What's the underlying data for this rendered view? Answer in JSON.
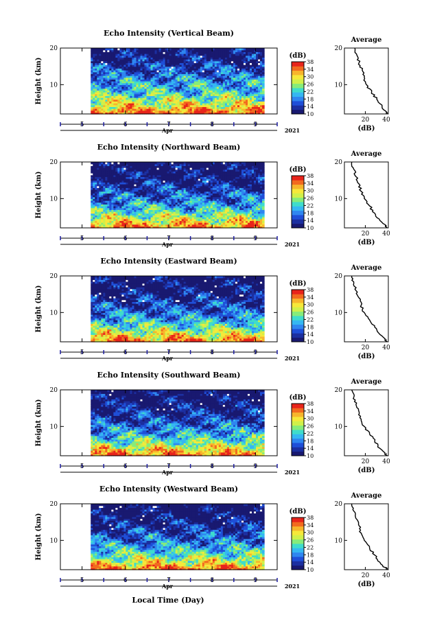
{
  "figure": {
    "xlabel": "Local Time (Day)",
    "colors": {
      "colormap": [
        "#191970",
        "#1c2fa0",
        "#1f4fd8",
        "#2f86f0",
        "#35b7f2",
        "#3fdccb",
        "#86ec7a",
        "#d0f04a",
        "#f6e83a",
        "#f7b52c",
        "#f26a1f",
        "#e8241b"
      ],
      "below_range": "#191970",
      "above_range": "#ff3a1a"
    }
  },
  "chart_data": [
    {
      "type": "heatmap",
      "title": "Echo Intensity (Vertical Beam)",
      "ylabel": "Height (km)",
      "yticks": [
        "20",
        "10"
      ],
      "ylim": [
        2,
        20
      ],
      "xticks": [
        "5",
        "6",
        "7",
        "8",
        "9"
      ],
      "x_month": "Apr",
      "x_year": "2021",
      "data_x_range": [
        5.2,
        9.2
      ],
      "colorbar": {
        "label": "(dB)",
        "ticks": [
          "38",
          "34",
          "30",
          "26",
          "22",
          "18",
          "14",
          "10"
        ],
        "range": [
          10,
          38
        ]
      },
      "intensity_by_height": {
        "heights": [
          2,
          4,
          6,
          8,
          10,
          12,
          14,
          16,
          18,
          20
        ],
        "values": [
          36,
          30,
          26,
          22,
          20,
          18,
          15,
          13,
          11,
          10
        ]
      },
      "profile": {
        "title": "Average",
        "xlabel": "(dB)",
        "xticks": [
          "20",
          "40"
        ],
        "yticks": [
          "20",
          "10"
        ],
        "xlim": [
          0,
          42
        ],
        "ylim": [
          2,
          20
        ],
        "points": [
          [
            41,
            2
          ],
          [
            36,
            4
          ],
          [
            31,
            6
          ],
          [
            26,
            8
          ],
          [
            21,
            10
          ],
          [
            19,
            12
          ],
          [
            17,
            14
          ],
          [
            14,
            16
          ],
          [
            12,
            18
          ],
          [
            10,
            20
          ]
        ]
      }
    },
    {
      "type": "heatmap",
      "title": "Echo Intensity (Northward Beam)",
      "ylabel": "Height (km)",
      "yticks": [
        "20",
        "10"
      ],
      "ylim": [
        2,
        20
      ],
      "xticks": [
        "5",
        "6",
        "7",
        "8",
        "9"
      ],
      "x_month": "Apr",
      "x_year": "2021",
      "data_x_range": [
        5.2,
        9.2
      ],
      "colorbar": {
        "label": "(dB)",
        "ticks": [
          "38",
          "34",
          "30",
          "26",
          "22",
          "18",
          "14",
          "10"
        ],
        "range": [
          10,
          38
        ]
      },
      "intensity_by_height": {
        "heights": [
          2,
          4,
          6,
          8,
          10,
          12,
          14,
          16,
          18,
          20
        ],
        "values": [
          35,
          29,
          24,
          20,
          17,
          15,
          13,
          11,
          10,
          9
        ]
      },
      "profile": {
        "title": "Average",
        "xlabel": "(dB)",
        "xticks": [
          "20",
          "40"
        ],
        "yticks": [
          "20",
          "10"
        ],
        "xlim": [
          0,
          42
        ],
        "ylim": [
          2,
          20
        ],
        "points": [
          [
            41,
            2
          ],
          [
            34,
            4
          ],
          [
            29,
            6
          ],
          [
            24,
            8
          ],
          [
            19,
            10
          ],
          [
            16,
            12
          ],
          [
            14,
            14
          ],
          [
            11,
            16
          ],
          [
            9,
            18
          ],
          [
            7,
            20
          ]
        ]
      }
    },
    {
      "type": "heatmap",
      "title": "Echo Intensity (Eastward Beam)",
      "ylabel": "Height (km)",
      "yticks": [
        "20",
        "10"
      ],
      "ylim": [
        2,
        20
      ],
      "xticks": [
        "5",
        "6",
        "7",
        "8",
        "9"
      ],
      "x_month": "Apr",
      "x_year": "2021",
      "data_x_range": [
        5.2,
        9.2
      ],
      "colorbar": {
        "label": "(dB)",
        "ticks": [
          "38",
          "34",
          "30",
          "26",
          "22",
          "18",
          "14",
          "10"
        ],
        "range": [
          10,
          38
        ]
      },
      "intensity_by_height": {
        "heights": [
          2,
          4,
          6,
          8,
          10,
          12,
          14,
          16,
          18,
          20
        ],
        "values": [
          35,
          29,
          24,
          20,
          17,
          15,
          13,
          11,
          10,
          9
        ]
      },
      "profile": {
        "title": "Average",
        "xlabel": "(dB)",
        "xticks": [
          "20",
          "40"
        ],
        "yticks": [
          "20",
          "10"
        ],
        "xlim": [
          0,
          42
        ],
        "ylim": [
          2,
          20
        ],
        "points": [
          [
            41,
            2
          ],
          [
            34,
            4
          ],
          [
            29,
            6
          ],
          [
            24,
            8
          ],
          [
            19,
            10
          ],
          [
            16,
            12
          ],
          [
            14,
            14
          ],
          [
            11,
            16
          ],
          [
            9,
            18
          ],
          [
            7,
            20
          ]
        ]
      }
    },
    {
      "type": "heatmap",
      "title": "Echo Intensity (Southward Beam)",
      "ylabel": "Height (km)",
      "yticks": [
        "20",
        "10"
      ],
      "ylim": [
        2,
        20
      ],
      "xticks": [
        "5",
        "6",
        "7",
        "8",
        "9"
      ],
      "x_month": "Apr",
      "x_year": "2021",
      "data_x_range": [
        5.2,
        9.2
      ],
      "colorbar": {
        "label": "(dB)",
        "ticks": [
          "38",
          "34",
          "30",
          "26",
          "22",
          "18",
          "14",
          "10"
        ],
        "range": [
          10,
          38
        ]
      },
      "intensity_by_height": {
        "heights": [
          2,
          4,
          6,
          8,
          10,
          12,
          14,
          16,
          18,
          20
        ],
        "values": [
          35,
          29,
          24,
          20,
          17,
          15,
          13,
          11,
          10,
          9
        ]
      },
      "profile": {
        "title": "Average",
        "xlabel": "(dB)",
        "xticks": [
          "20",
          "40"
        ],
        "yticks": [
          "20",
          "10"
        ],
        "xlim": [
          0,
          42
        ],
        "ylim": [
          2,
          20
        ],
        "points": [
          [
            41,
            2
          ],
          [
            34,
            4
          ],
          [
            29,
            6
          ],
          [
            24,
            8
          ],
          [
            19,
            10
          ],
          [
            16,
            12
          ],
          [
            14,
            14
          ],
          [
            11,
            16
          ],
          [
            9,
            18
          ],
          [
            7,
            20
          ]
        ]
      }
    },
    {
      "type": "heatmap",
      "title": "Echo Intensity (Westward Beam)",
      "ylabel": "Height (km)",
      "yticks": [
        "20",
        "10"
      ],
      "ylim": [
        2,
        20
      ],
      "xticks": [
        "5",
        "6",
        "7",
        "8",
        "9"
      ],
      "x_month": "Apr",
      "x_year": "2021",
      "data_x_range": [
        5.2,
        9.2
      ],
      "colorbar": {
        "label": "(dB)",
        "ticks": [
          "38",
          "34",
          "30",
          "26",
          "22",
          "18",
          "14",
          "10"
        ],
        "range": [
          10,
          38
        ]
      },
      "intensity_by_height": {
        "heights": [
          2,
          4,
          6,
          8,
          10,
          12,
          14,
          16,
          18,
          20
        ],
        "values": [
          36,
          29,
          24,
          20,
          17,
          15,
          13,
          11,
          10,
          9
        ]
      },
      "profile": {
        "title": "Average",
        "xlabel": "(dB)",
        "xticks": [
          "20",
          "40"
        ],
        "yticks": [
          "20",
          "10"
        ],
        "xlim": [
          0,
          42
        ],
        "ylim": [
          2,
          20
        ],
        "points": [
          [
            41,
            2
          ],
          [
            34,
            4
          ],
          [
            29,
            6
          ],
          [
            24,
            8
          ],
          [
            19,
            10
          ],
          [
            16,
            12
          ],
          [
            14,
            14
          ],
          [
            11,
            16
          ],
          [
            9,
            18
          ],
          [
            7,
            20
          ]
        ]
      }
    }
  ]
}
